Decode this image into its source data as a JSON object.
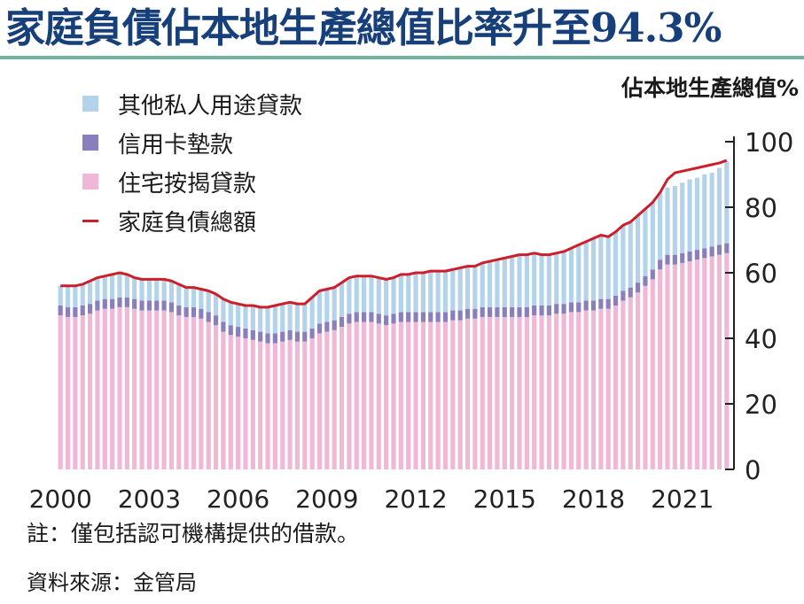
{
  "title": "家庭負債佔本地生產總值比率升至94.3%",
  "note": "註：僅包括認可機構提供的借款。",
  "source": "資料來源：金管局",
  "colors": {
    "title": "#17407a",
    "rule": "#6fb79a",
    "other_private": "#b3d3ea",
    "credit_card": "#8a7fbd",
    "mortgage": "#f0b8d6",
    "total": "#cc1f2c"
  },
  "chart_data": {
    "type": "bar",
    "stacked": true,
    "frequency": "quarterly",
    "period_start": "2000 Q1",
    "period_end": "2022 Q3",
    "ylabel": "佔本地生產總值%",
    "ylim": [
      0,
      100
    ],
    "yticks": [
      "0",
      "20",
      "40",
      "60",
      "80",
      "100"
    ],
    "xtick_labels": [
      "2000",
      "2003",
      "2006",
      "2009",
      "2012",
      "2015",
      "2018",
      "2021"
    ],
    "legend_position": "top-left",
    "grid": false,
    "series": [
      {
        "name": "住宅按揭貸款",
        "color": "#f0b8d6",
        "type": "bar",
        "values": [
          47,
          46.5,
          46.5,
          47,
          47.5,
          48.5,
          49,
          49,
          49.5,
          49.5,
          49,
          48.5,
          48.5,
          48.5,
          48.5,
          48,
          47,
          46.5,
          46.5,
          46,
          45,
          44,
          42,
          41,
          40.5,
          40,
          39.5,
          39,
          38.5,
          38.5,
          39,
          39.5,
          39,
          39,
          40,
          41.5,
          42,
          42.5,
          43.5,
          44.5,
          45,
          45,
          45,
          44.5,
          44,
          44.5,
          45,
          45,
          45,
          45,
          45,
          45,
          45,
          45.5,
          45.5,
          46,
          46,
          46.5,
          46.5,
          46.5,
          46.5,
          46.5,
          46.5,
          46.5,
          47,
          47,
          47,
          47.5,
          47.5,
          48,
          48,
          48.5,
          48.5,
          49,
          49,
          50,
          51.5,
          52.5,
          54,
          56,
          58,
          61,
          62.5,
          62.5,
          63,
          63.5,
          64,
          64.5,
          65,
          65.5,
          66
        ]
      },
      {
        "name": "信用卡墊款",
        "color": "#8a7fbd",
        "type": "bar",
        "values": [
          3,
          3,
          3,
          3,
          3,
          3,
          3,
          3,
          3,
          3,
          3,
          3,
          3,
          3,
          3,
          3,
          3,
          3,
          3,
          3,
          3,
          3,
          3,
          3,
          3,
          3,
          3,
          3,
          3,
          3,
          3,
          3,
          3,
          3,
          3,
          3,
          3,
          3,
          3,
          3,
          3,
          3,
          3,
          3,
          3,
          3,
          3,
          3,
          3,
          3,
          3,
          3,
          3,
          3,
          3,
          3,
          3,
          3,
          3,
          3,
          3,
          3,
          3,
          3,
          3,
          3,
          3,
          3,
          3,
          3,
          3,
          3,
          3,
          3,
          3,
          3,
          3,
          3,
          3,
          3,
          3,
          3,
          3,
          3,
          3,
          3,
          3,
          3,
          3,
          3,
          3
        ]
      },
      {
        "name": "其他私人用途貸款",
        "color": "#b3d3ea",
        "type": "bar",
        "values": [
          6,
          6.5,
          6.5,
          6.5,
          7,
          7,
          7,
          7.5,
          7.5,
          7,
          6.5,
          6.5,
          6.5,
          6.5,
          6.5,
          6.5,
          6.5,
          6,
          6,
          6,
          6.5,
          6.5,
          7,
          7,
          7,
          7,
          7.5,
          7.5,
          8,
          8.5,
          8.5,
          8.5,
          8.5,
          8.5,
          9.5,
          10,
          10,
          10,
          10.5,
          11,
          11,
          11,
          11,
          11,
          11,
          11,
          11.5,
          11.5,
          12,
          12,
          12.5,
          12.5,
          12.5,
          12.5,
          13,
          13,
          13,
          13.5,
          14,
          14.5,
          15,
          15.5,
          16,
          16,
          16,
          15.5,
          15.5,
          15.5,
          16,
          16.5,
          17.5,
          18,
          19,
          19.5,
          19,
          19.5,
          20,
          20,
          20.5,
          20.5,
          20.5,
          20.5,
          20.5,
          21,
          21.5,
          22,
          22,
          22.5,
          22.5,
          23.5,
          25
        ]
      },
      {
        "name": "家庭負債總額",
        "color": "#cc1f2c",
        "type": "line",
        "values": [
          56,
          56,
          56,
          56.5,
          57.5,
          58.5,
          59,
          59.5,
          60,
          59.5,
          58.5,
          58,
          58,
          58,
          58,
          57.5,
          56.5,
          55.5,
          55.5,
          55,
          54.5,
          53.5,
          52,
          51,
          50.5,
          50,
          50,
          49.5,
          49.5,
          50,
          50.5,
          51,
          50.5,
          50.5,
          52.5,
          54.5,
          55,
          55.5,
          57,
          58.5,
          59,
          59,
          59,
          58.5,
          58,
          58.5,
          59.5,
          59.5,
          60,
          60,
          60.5,
          60.5,
          60.5,
          61,
          61.5,
          62,
          62,
          63,
          63.5,
          64,
          64.5,
          65,
          65.5,
          65.5,
          66,
          65.5,
          65.5,
          66,
          66.5,
          67.5,
          68.5,
          69.5,
          70.5,
          71.5,
          71,
          72.5,
          74.5,
          75.5,
          77.5,
          79.5,
          81.5,
          84.5,
          88.5,
          90.5,
          91,
          91.5,
          92,
          92.5,
          93,
          93.5,
          94.3
        ]
      }
    ]
  }
}
